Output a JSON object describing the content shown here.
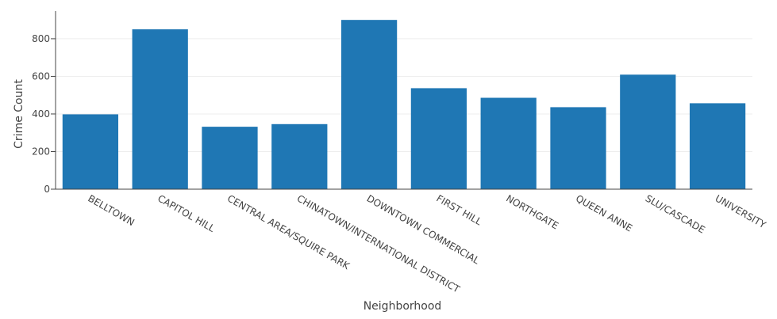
{
  "chart_data": {
    "type": "bar",
    "categories": [
      "BELLTOWN",
      "CAPITOL HILL",
      "CENTRAL AREA/SQUIRE PARK",
      "CHINATOWN/INTERNATIONAL DISTRICT",
      "DOWNTOWN COMMERCIAL",
      "FIRST HILL",
      "NORTHGATE",
      "QUEEN ANNE",
      "SLU/CASCADE",
      "UNIVERSITY"
    ],
    "values": [
      398,
      850,
      332,
      346,
      900,
      537,
      486,
      436,
      609,
      457
    ],
    "xlabel": "Neighborhood",
    "ylabel": "Crime Count",
    "ylim": [
      0,
      947
    ],
    "yticks": [
      0,
      200,
      400,
      600,
      800
    ],
    "bar_color": "#1f77b4",
    "grid": true,
    "legend": false
  }
}
